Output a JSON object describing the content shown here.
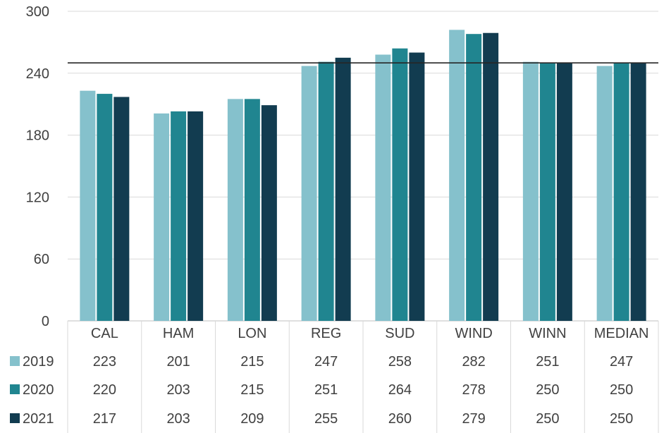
{
  "chart_data": {
    "type": "bar",
    "categories": [
      "CAL",
      "HAM",
      "LON",
      "REG",
      "SUD",
      "WIND",
      "WINN",
      "MEDIAN"
    ],
    "series": [
      {
        "name": "2019",
        "values": [
          223,
          201,
          215,
          247,
          258,
          282,
          251,
          247
        ]
      },
      {
        "name": "2020",
        "values": [
          220,
          203,
          215,
          251,
          264,
          278,
          250,
          250
        ]
      },
      {
        "name": "2021",
        "values": [
          217,
          203,
          209,
          255,
          260,
          279,
          250,
          250
        ]
      }
    ],
    "colors": [
      "#85C1CC",
      "#208590",
      "#123C50"
    ],
    "reference_line": 250,
    "yticks": [
      "0",
      "60",
      "120",
      "180",
      "240",
      "300"
    ],
    "ylim": [
      0,
      300
    ],
    "grid": true,
    "legend": "data-table-left",
    "title": "",
    "xlabel": "",
    "ylabel": ""
  }
}
